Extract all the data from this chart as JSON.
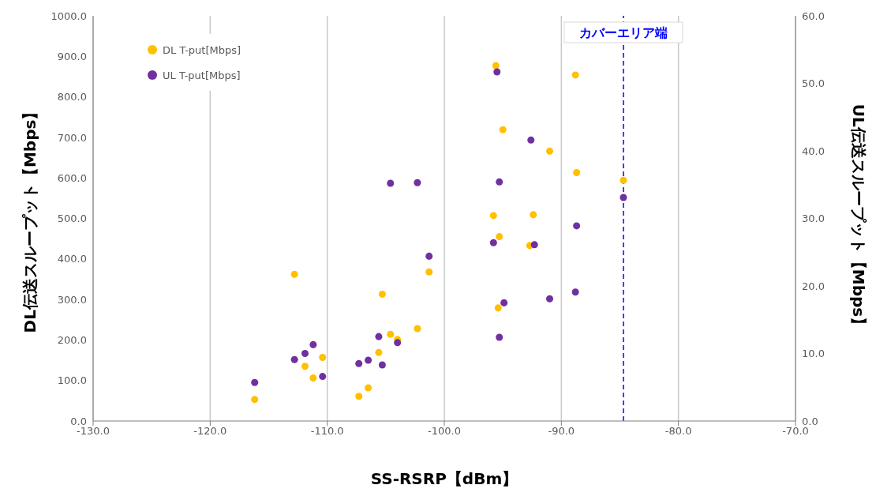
{
  "chart_data": {
    "type": "scatter",
    "xlabel": "SS-RSRP【dBm】",
    "ylabel": "DL伝送スループット【Mbps】",
    "y2label": "UL伝送スループット【Mbps】",
    "series": [
      {
        "name": "DL T-put[Mbps]",
        "color": "#ffc000",
        "x": [
          -116.2,
          -112.8,
          -111.9,
          -111.2,
          -110.4,
          -107.3,
          -106.5,
          -105.6,
          -105.3,
          -104.6,
          -104.0,
          -102.3,
          -101.3,
          -95.8,
          -95.6,
          -95.4,
          -95.3,
          -95.0,
          -92.4,
          -92.7,
          -91.0,
          -88.8,
          -88.7,
          -84.7
        ],
        "values": [
          53,
          362,
          135,
          106,
          157,
          61,
          82,
          169,
          313,
          214,
          201,
          228,
          368,
          507,
          877,
          279,
          455,
          719,
          509,
          433,
          666,
          854,
          613,
          594
        ]
      },
      {
        "name": "UL T-put[Mbps]",
        "color": "#7030a0",
        "axis": "y2",
        "x": [
          -116.2,
          -112.8,
          -111.9,
          -111.2,
          -110.4,
          -107.3,
          -106.5,
          -105.6,
          -105.3,
          -104.6,
          -104.0,
          -102.3,
          -101.3,
          -95.8,
          -95.5,
          -95.3,
          -95.3,
          -94.9,
          -92.6,
          -92.3,
          -91.0,
          -88.7,
          -88.8,
          -84.7
        ],
        "values": [
          5.7,
          9.1,
          10.0,
          11.3,
          6.6,
          8.5,
          9.0,
          12.5,
          8.3,
          35.2,
          11.6,
          35.3,
          24.4,
          26.4,
          51.7,
          12.4,
          35.4,
          17.5,
          41.6,
          26.1,
          18.1,
          28.9,
          19.1,
          33.1
        ]
      }
    ],
    "xlim": [
      -130,
      -70
    ],
    "xticks": [
      {
        "value": -130,
        "label": "-130.0"
      },
      {
        "value": -120,
        "label": "-120.0"
      },
      {
        "value": -110,
        "label": "-110.0"
      },
      {
        "value": -100,
        "label": "-100.0"
      },
      {
        "value": -90,
        "label": "-90.0"
      },
      {
        "value": -80,
        "label": "-80.0"
      },
      {
        "value": -70,
        "label": "-70.0"
      }
    ],
    "ylim": [
      0,
      1000
    ],
    "yticks": [
      {
        "value": 0,
        "label": "0.0"
      },
      {
        "value": 100,
        "label": "100.0"
      },
      {
        "value": 200,
        "label": "200.0"
      },
      {
        "value": 300,
        "label": "300.0"
      },
      {
        "value": 400,
        "label": "400.0"
      },
      {
        "value": 500,
        "label": "500.0"
      },
      {
        "value": 600,
        "label": "600.0"
      },
      {
        "value": 700,
        "label": "700.0"
      },
      {
        "value": 800,
        "label": "800.0"
      },
      {
        "value": 900,
        "label": "900.0"
      },
      {
        "value": 1000,
        "label": "1000.0"
      }
    ],
    "y2lim": [
      0,
      60
    ],
    "y2ticks": [
      {
        "value": 0,
        "label": "0.0"
      },
      {
        "value": 10,
        "label": "10.0"
      },
      {
        "value": 20,
        "label": "20.0"
      },
      {
        "value": 30,
        "label": "30.0"
      },
      {
        "value": 40,
        "label": "40.0"
      },
      {
        "value": 50,
        "label": "50.0"
      },
      {
        "value": 60,
        "label": "60.0"
      }
    ],
    "ref_lines": [
      {
        "axis": "x",
        "value": -84.7,
        "label": "カバーエリア端",
        "color": "#0000ff",
        "line_style": "dashed"
      }
    ],
    "grid": true,
    "legend": "top left",
    "marker": "circle"
  }
}
